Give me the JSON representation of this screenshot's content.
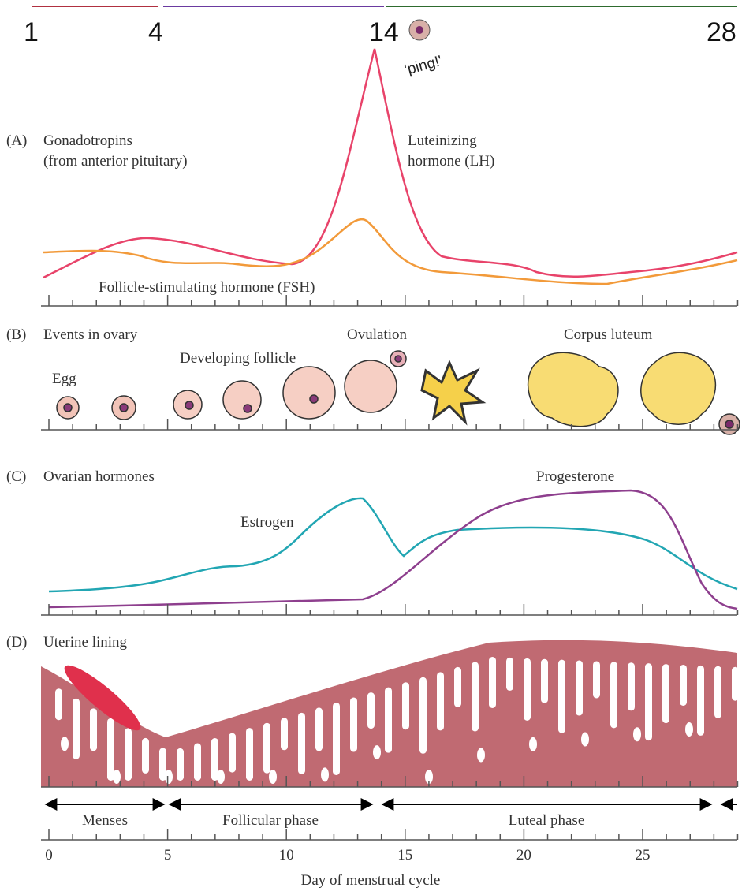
{
  "top_bar": {
    "labels": [
      "1",
      "4",
      "14",
      "28"
    ],
    "annotation": "'ping!'"
  },
  "panel_a": {
    "letter": "(A)",
    "title": [
      "Gonadotropins",
      "(from anterior pituitary)"
    ],
    "lh_label": [
      "Luteinizing",
      "hormone (LH)"
    ],
    "fsh_label": "Follicle-stimulating hormone (FSH)"
  },
  "panel_b": {
    "letter": "(B)",
    "title": "Events in ovary",
    "egg": "Egg",
    "developing": "Developing follicle",
    "ovulation": "Ovulation",
    "corpus": "Corpus luteum"
  },
  "panel_c": {
    "letter": "(C)",
    "title": "Ovarian hormones",
    "progesterone": "Progesterone",
    "estrogen": "Estrogen"
  },
  "panel_d": {
    "letter": "(D)",
    "title": "Uterine lining"
  },
  "phases": [
    "Menses",
    "Follicular phase",
    "Luteal phase"
  ],
  "x_axis": {
    "ticks": [
      0,
      5,
      10,
      15,
      20,
      25
    ],
    "title": "Day of menstrual cycle"
  }
}
